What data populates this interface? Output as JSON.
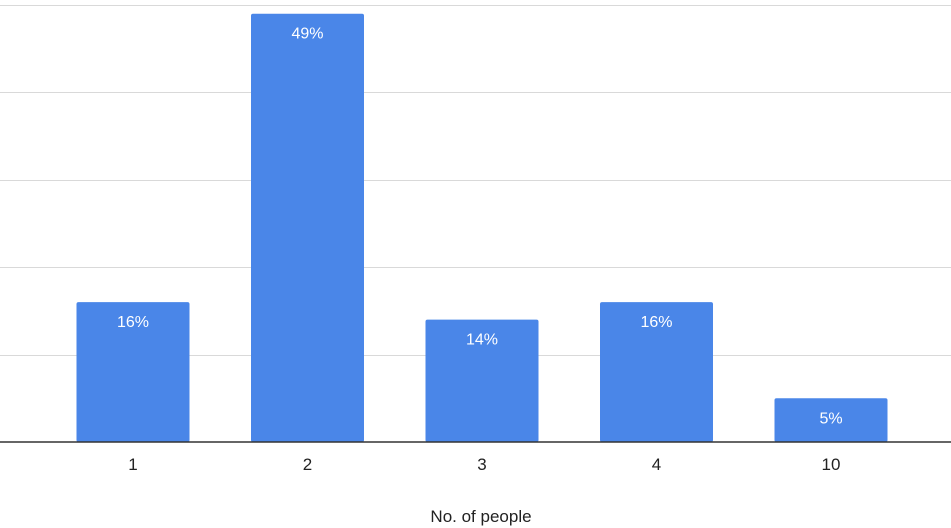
{
  "chart_data": {
    "type": "bar",
    "title": "",
    "xlabel": "No. of people",
    "ylabel": "",
    "categories": [
      "1",
      "2",
      "3",
      "4",
      "10"
    ],
    "values": [
      16,
      49,
      14,
      16,
      5
    ],
    "data_labels": [
      "16%",
      "49%",
      "14%",
      "16%",
      "5%"
    ],
    "ylim": [
      0,
      50
    ],
    "grid": true,
    "bar_color": "#4a86e8"
  }
}
